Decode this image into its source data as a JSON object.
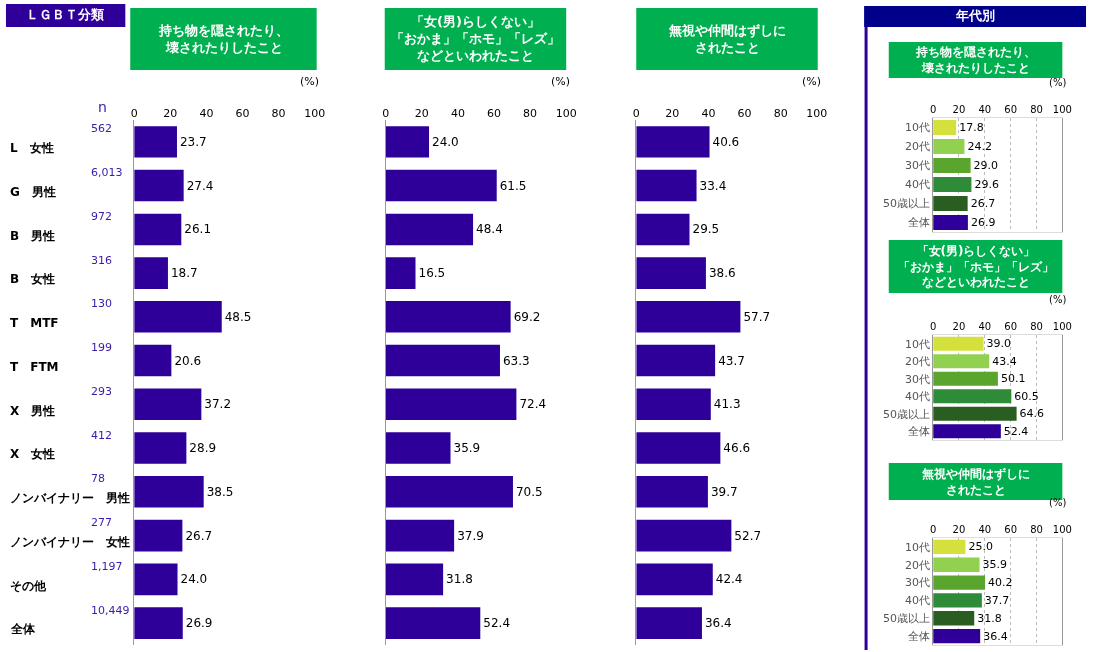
{
  "chart_data": [
    {
      "type": "bar",
      "orientation": "horizontal",
      "title": "持ち物を隠されたり、壊されたりしたこと",
      "xlabel": "(%)",
      "categories": [
        "L　女性",
        "G　男性",
        "B　男性",
        "B　女性",
        "T　MTF",
        "T　FTM",
        "X　男性",
        "X　女性",
        "ノンバイナリー　男性",
        "ノンバイナリー　女性",
        "その他",
        "全体"
      ],
      "y2_categories": [
        "562",
        "6,013",
        "972",
        "316",
        "130",
        "199",
        "293",
        "412",
        "78",
        "277",
        "1,197",
        "10,449"
      ],
      "values": [
        23.7,
        27.4,
        26.1,
        18.7,
        48.5,
        20.6,
        37.2,
        28.9,
        38.5,
        26.7,
        24.0,
        26.9
      ],
      "value_labels": [
        "23.7",
        "27.4",
        "26.1",
        "18.7",
        "48.5",
        "20.6",
        "37.2",
        "28.9",
        "38.5",
        "26.7",
        "24.0",
        "26.9"
      ],
      "color": "#2e0099",
      "xlim": [
        0,
        100
      ],
      "xticks": [
        0,
        20,
        40,
        60,
        80,
        100
      ],
      "grid": false,
      "annotations": [
        "ＬＧＢＴ分類",
        "n"
      ]
    },
    {
      "type": "bar",
      "orientation": "horizontal",
      "title": "「女(男)らしくない」「おかま」「ホモ」「レズ」などといわれたこと",
      "xlabel": "(%)",
      "categories": [
        "L　女性",
        "G　男性",
        "B　男性",
        "B　女性",
        "T　MTF",
        "T　FTM",
        "X　男性",
        "X　女性",
        "ノンバイナリー　男性",
        "ノンバイナリー　女性",
        "その他",
        "全体"
      ],
      "values": [
        24.0,
        61.5,
        48.4,
        16.5,
        69.2,
        63.3,
        72.4,
        35.9,
        70.5,
        37.9,
        31.8,
        52.4
      ],
      "value_labels": [
        "24.0",
        "61.5",
        "48.4",
        "16.5",
        "69.2",
        "63.3",
        "72.4",
        "35.9",
        "70.5",
        "37.9",
        "31.8",
        "52.4"
      ],
      "color": "#2e0099",
      "xlim": [
        0,
        100
      ],
      "xticks": [
        0,
        20,
        40,
        60,
        80,
        100
      ],
      "grid": false,
      "tick_labels": "x"
    },
    {
      "type": "bar",
      "orientation": "horizontal",
      "title": "無視や仲間はずしにされたこと",
      "xlabel": "(%)",
      "categories": [
        "L　女性",
        "G　男性",
        "B　男性",
        "B　女性",
        "T　MTF",
        "T　FTM",
        "X　男性",
        "X　女性",
        "ノンバイナリー　男性",
        "ノンバイナリー　女性",
        "その他",
        "全体"
      ],
      "values": [
        40.6,
        33.4,
        29.5,
        38.6,
        57.7,
        43.7,
        41.3,
        46.6,
        39.7,
        52.7,
        42.4,
        36.4
      ],
      "value_labels": [
        "40.6",
        "33.4",
        "29.5",
        "38.6",
        "57.7",
        "43.7",
        "41.3",
        "46.6",
        "39.7",
        "52.7",
        "42.4",
        "36.4"
      ],
      "color": "#2e0099",
      "xlim": [
        0,
        100
      ],
      "xticks": [
        0,
        20,
        40,
        60,
        80,
        100
      ],
      "grid": false,
      "tick_labels": "x"
    },
    {
      "type": "bar",
      "orientation": "horizontal",
      "title": "持ち物を隠されたり、壊されたりしたこと",
      "xlabel": "(%)",
      "categories": [
        "10代",
        "20代",
        "30代",
        "40代",
        "50歳以上",
        "全体"
      ],
      "values": [
        17.8,
        24.2,
        29.0,
        29.6,
        26.7,
        26.9
      ],
      "value_labels": [
        "17.8",
        "24.2",
        "29.0",
        "29.6",
        "26.7",
        "26.9"
      ],
      "colors": [
        "#d4e03c",
        "#92d050",
        "#5aa52e",
        "#2e8b37",
        "#2a5e20",
        "#2e0099"
      ],
      "xlim": [
        0,
        100
      ],
      "xticks": [
        0,
        20,
        40,
        60,
        80,
        100
      ],
      "grid": "x",
      "annotations": [
        "年代別"
      ]
    },
    {
      "type": "bar",
      "orientation": "horizontal",
      "title": "「女(男)らしくない」「おかま」「ホモ」「レズ」などといわれたこと",
      "xlabel": "(%)",
      "categories": [
        "10代",
        "20代",
        "30代",
        "40代",
        "50歳以上",
        "全体"
      ],
      "values": [
        39.0,
        43.4,
        50.1,
        60.5,
        64.6,
        52.4
      ],
      "value_labels": [
        "39.0",
        "43.4",
        "50.1",
        "60.5",
        "64.6",
        "52.4"
      ],
      "colors": [
        "#d4e03c",
        "#92d050",
        "#5aa52e",
        "#2e8b37",
        "#2a5e20",
        "#2e0099"
      ],
      "xlim": [
        0,
        100
      ],
      "xticks": [
        0,
        20,
        40,
        60,
        80,
        100
      ],
      "grid": "x"
    },
    {
      "type": "bar",
      "orientation": "horizontal",
      "title": "無視や仲間はずしにされたこと",
      "xlabel": "(%)",
      "categories": [
        "10代",
        "20代",
        "30代",
        "40代",
        "50歳以上",
        "全体"
      ],
      "values": [
        25.0,
        35.9,
        40.2,
        37.7,
        31.8,
        36.4
      ],
      "value_labels": [
        "25.0",
        "35.9",
        "40.2",
        "37.7",
        "31.8",
        "36.4"
      ],
      "colors": [
        "#d4e03c",
        "#92d050",
        "#5aa52e",
        "#2e8b37",
        "#2a5e20",
        "#2e0099"
      ],
      "xlim": [
        0,
        100
      ],
      "xticks": [
        0,
        20,
        40,
        60,
        80,
        100
      ],
      "grid": "x"
    }
  ]
}
